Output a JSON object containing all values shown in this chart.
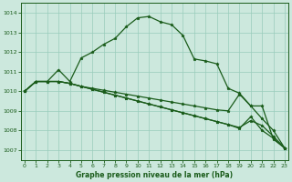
{
  "bg_color": "#cce8dd",
  "grid_color": "#99ccbb",
  "line_color": "#1a5c1a",
  "xlabel": "Graphe pression niveau de la mer (hPa)",
  "ylim": [
    1006.5,
    1014.5
  ],
  "xlim": [
    -0.3,
    23.3
  ],
  "yticks": [
    1007,
    1008,
    1009,
    1010,
    1011,
    1012,
    1013,
    1014
  ],
  "xticks": [
    0,
    1,
    2,
    3,
    4,
    5,
    6,
    7,
    8,
    9,
    10,
    11,
    12,
    13,
    14,
    15,
    16,
    17,
    18,
    19,
    20,
    21,
    22,
    23
  ],
  "line1": [
    1010.0,
    1010.5,
    1010.5,
    1011.1,
    1010.5,
    1011.7,
    1012.0,
    1012.4,
    1012.7,
    1013.3,
    1013.75,
    1013.82,
    1013.55,
    1013.4,
    1012.85,
    1011.65,
    1011.55,
    1011.4,
    1010.15,
    1009.9,
    1009.25,
    1009.25,
    1007.55,
    1007.1
  ],
  "line2": [
    1010.0,
    1010.5,
    1010.5,
    1010.5,
    1010.4,
    1010.25,
    1010.15,
    1010.05,
    1009.95,
    1009.85,
    1009.75,
    1009.65,
    1009.55,
    1009.45,
    1009.35,
    1009.25,
    1009.15,
    1009.05,
    1009.0,
    1009.85,
    1009.25,
    1008.6,
    1008.0,
    1007.1
  ],
  "line3": [
    1010.0,
    1010.5,
    1010.5,
    1010.5,
    1010.4,
    1010.25,
    1010.1,
    1009.95,
    1009.8,
    1009.65,
    1009.5,
    1009.35,
    1009.2,
    1009.05,
    1008.9,
    1008.75,
    1008.6,
    1008.45,
    1008.3,
    1008.15,
    1008.5,
    1008.25,
    1007.7,
    1007.1
  ],
  "line4": [
    1010.0,
    1010.5,
    1010.5,
    1010.5,
    1010.4,
    1010.25,
    1010.1,
    1009.95,
    1009.8,
    1009.65,
    1009.5,
    1009.35,
    1009.2,
    1009.05,
    1008.9,
    1008.75,
    1008.6,
    1008.45,
    1008.3,
    1008.1,
    1008.7,
    1008.0,
    1007.6,
    1007.1
  ]
}
